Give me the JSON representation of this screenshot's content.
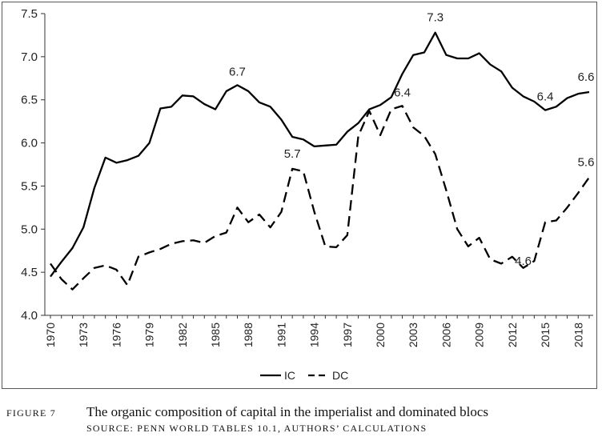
{
  "chart_data": {
    "type": "line",
    "x": [
      1970,
      1971,
      1972,
      1973,
      1974,
      1975,
      1976,
      1977,
      1978,
      1979,
      1980,
      1981,
      1982,
      1983,
      1984,
      1985,
      1986,
      1987,
      1988,
      1989,
      1990,
      1991,
      1992,
      1993,
      1994,
      1995,
      1996,
      1997,
      1998,
      1999,
      2000,
      2001,
      2002,
      2003,
      2004,
      2005,
      2006,
      2007,
      2008,
      2009,
      2010,
      2011,
      2012,
      2013,
      2014,
      2015,
      2016,
      2017,
      2018,
      2019
    ],
    "x_tick_labels": [
      "1970",
      "1973",
      "1976",
      "1979",
      "1982",
      "1985",
      "1988",
      "1991",
      "1994",
      "1997",
      "2000",
      "2003",
      "2006",
      "2009",
      "2012",
      "2015",
      "2018"
    ],
    "series": [
      {
        "name": "IC",
        "style": "solid",
        "values": [
          4.45,
          4.62,
          4.78,
          5.02,
          5.48,
          5.83,
          5.77,
          5.8,
          5.85,
          6.0,
          6.4,
          6.42,
          6.55,
          6.54,
          6.45,
          6.39,
          6.6,
          6.67,
          6.6,
          6.47,
          6.42,
          6.27,
          6.07,
          6.04,
          5.96,
          5.97,
          5.98,
          6.13,
          6.23,
          6.39,
          6.44,
          6.53,
          6.8,
          7.02,
          7.05,
          7.28,
          7.02,
          6.98,
          6.98,
          7.04,
          6.91,
          6.83,
          6.64,
          6.54,
          6.48,
          6.38,
          6.42,
          6.52,
          6.57,
          6.59
        ]
      },
      {
        "name": "DC",
        "style": "dashed",
        "values": [
          4.6,
          4.42,
          4.3,
          4.43,
          4.55,
          4.58,
          4.53,
          4.35,
          4.68,
          4.73,
          4.77,
          4.83,
          4.86,
          4.87,
          4.84,
          4.92,
          4.96,
          5.25,
          5.08,
          5.17,
          5.02,
          5.2,
          5.7,
          5.67,
          5.2,
          4.8,
          4.79,
          4.93,
          6.08,
          6.37,
          6.09,
          6.39,
          6.43,
          6.18,
          6.08,
          5.87,
          5.45,
          5.0,
          4.8,
          4.9,
          4.65,
          4.6,
          4.68,
          4.55,
          4.63,
          5.08,
          5.1,
          5.25,
          5.42,
          5.6
        ]
      }
    ],
    "ylim": [
      4.0,
      7.5
    ],
    "y_ticks": [
      "4.0",
      "4.5",
      "5.0",
      "5.5",
      "6.0",
      "6.5",
      "7.0",
      "7.5"
    ],
    "annotations": [
      {
        "text": "6.7",
        "x": 1987,
        "y": 6.67
      },
      {
        "text": "5.7",
        "x": 1992,
        "y": 5.7
      },
      {
        "text": "7.3",
        "x": 2005,
        "y": 7.28
      },
      {
        "text": "6.4",
        "x": 2002,
        "y": 6.43
      },
      {
        "text": "4.6",
        "x": 2013,
        "y": 4.55
      },
      {
        "text": "6.4",
        "x": 2015,
        "y": 6.38
      },
      {
        "text": "6.6",
        "x": 2019,
        "y": 6.59
      },
      {
        "text": "5.6",
        "x": 2019,
        "y": 5.6
      }
    ],
    "legend_position": "bottom-center",
    "grid": false
  },
  "caption": {
    "label": "Figure 7",
    "title": "The organic composition of capital in the imperialist and dominated blocs",
    "source": "Source: Penn World Tables 10.1, authors’ calculations"
  }
}
